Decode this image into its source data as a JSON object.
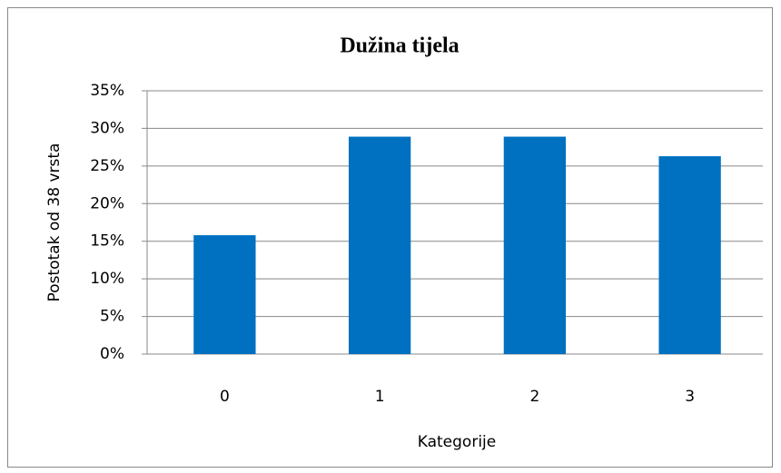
{
  "chart_data": {
    "type": "bar",
    "title": "Dužina tijela",
    "x_label": "Kategorije",
    "y_label": "Postotak od 38 vrsta",
    "categories": [
      "0",
      "1",
      "2",
      "3"
    ],
    "values": [
      15.8,
      28.9,
      28.9,
      26.3
    ],
    "color": "#0070c0",
    "ylim": [
      0,
      35
    ],
    "yticks": [
      {
        "value": 0,
        "label": "0%"
      },
      {
        "value": 5,
        "label": "5%"
      },
      {
        "value": 10,
        "label": "10%"
      },
      {
        "value": 15,
        "label": "15%"
      },
      {
        "value": 20,
        "label": "20%"
      },
      {
        "value": 25,
        "label": "25%"
      },
      {
        "value": 30,
        "label": "30%"
      },
      {
        "value": 35,
        "label": "35%"
      }
    ],
    "grid": true
  }
}
